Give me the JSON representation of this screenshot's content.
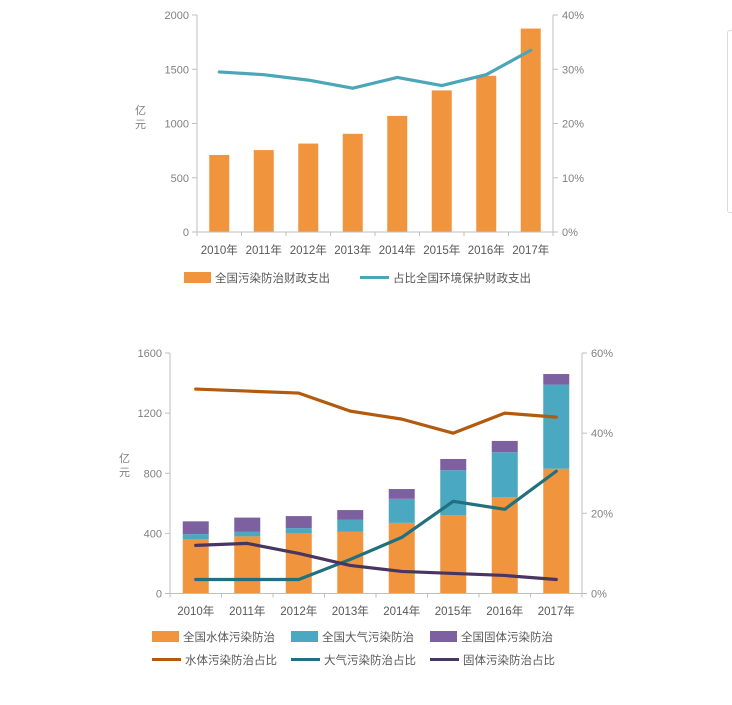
{
  "page": {
    "background": "#ffffff",
    "text_color": "#595959",
    "axis_color": "#bfbfbf"
  },
  "chart_data": [
    {
      "type": "bar",
      "title": "",
      "ylabel": "亿元",
      "grid": false,
      "legend_position": "bottom",
      "categories": [
        "2010年",
        "2011年",
        "2012年",
        "2013年",
        "2014年",
        "2015年",
        "2016年",
        "2017年"
      ],
      "left_axis": {
        "min": 0,
        "max": 2000,
        "ticks": [
          0,
          500,
          1000,
          1500,
          2000
        ],
        "labels": [
          "0",
          "500",
          "1000",
          "1500",
          "2000"
        ]
      },
      "right_axis": {
        "min": 0,
        "max": 40,
        "ticks": [
          0,
          10,
          20,
          30,
          40
        ],
        "labels": [
          "0%",
          "10%",
          "20%",
          "30%",
          "40%"
        ]
      },
      "bar_series": [
        {
          "name": "全国污染防治财政支出",
          "color": "#F0943D",
          "values": [
            710,
            755,
            815,
            905,
            1070,
            1305,
            1440,
            1875
          ]
        }
      ],
      "line_series": [
        {
          "name": "占比全国环境保护财政支出",
          "color": "#4BA6B8",
          "values": [
            29.5,
            29,
            28,
            26.5,
            28.5,
            27,
            29,
            33.5
          ]
        }
      ]
    },
    {
      "type": "bar",
      "title": "",
      "ylabel": "亿元",
      "grid": false,
      "legend_position": "bottom",
      "stacked": true,
      "categories": [
        "2010年",
        "2011年",
        "2012年",
        "2013年",
        "2014年",
        "2015年",
        "2016年",
        "2017年"
      ],
      "left_axis": {
        "min": 0,
        "max": 1600,
        "ticks": [
          0,
          400,
          800,
          1200,
          1600
        ],
        "labels": [
          "0",
          "400",
          "800",
          "1200",
          "1600"
        ]
      },
      "right_axis": {
        "min": 0,
        "max": 60,
        "ticks": [
          0,
          20,
          40,
          60
        ],
        "labels": [
          "0%",
          "20%",
          "40%",
          "60%"
        ]
      },
      "bar_series": [
        {
          "name": "全国水体污染防治",
          "color": "#F0943D",
          "values": [
            360,
            380,
            400,
            410,
            470,
            520,
            640,
            830
          ]
        },
        {
          "name": "全国大气污染防治",
          "color": "#4AA8C0",
          "values": [
            35,
            30,
            35,
            80,
            160,
            300,
            300,
            560
          ]
        },
        {
          "name": "全国固体污染防治",
          "color": "#7D60A0",
          "values": [
            85,
            95,
            80,
            65,
            65,
            75,
            75,
            70
          ]
        }
      ],
      "line_series": [
        {
          "name": "水体污染防治占比",
          "color": "#B25A0E",
          "values": [
            51,
            50.5,
            50,
            45.5,
            43.5,
            40,
            45,
            44
          ]
        },
        {
          "name": "大气污染防治占比",
          "color": "#21707F",
          "values": [
            3.5,
            3.5,
            3.5,
            8.5,
            14,
            23,
            21,
            30.5
          ]
        },
        {
          "name": "固体污染防治占比",
          "color": "#483660",
          "values": [
            12,
            12.5,
            10,
            7,
            5.5,
            5,
            4.5,
            3.5
          ]
        }
      ]
    }
  ]
}
